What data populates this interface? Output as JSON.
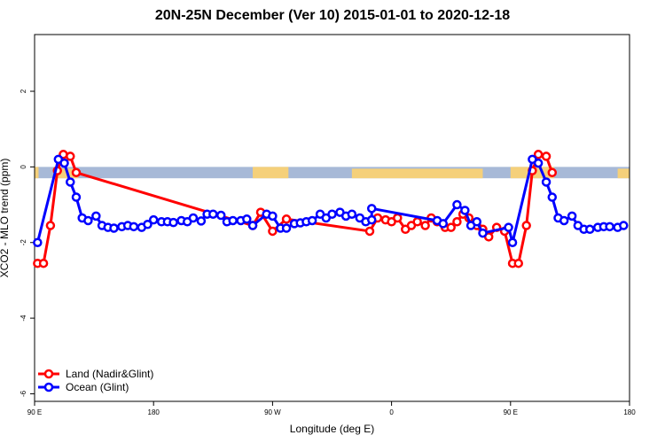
{
  "chart_data": {
    "type": "line",
    "title": "20N-25N December (Ver 10)   2015-01-01 to 2020-12-18",
    "xlabel": "Longitude (deg E)",
    "ylabel": "XCO2 - MLO trend (ppm)",
    "xlim": [
      0,
      300
    ],
    "ylim": [
      -6.2,
      3.5
    ],
    "x_ticks": [
      {
        "x": 0,
        "label": "90 E"
      },
      {
        "x": 60,
        "label": "180"
      },
      {
        "x": 120,
        "label": "90 W"
      },
      {
        "x": 180,
        "label": "0"
      },
      {
        "x": 240,
        "label": "90 E"
      },
      {
        "x": 300,
        "label": "180"
      }
    ],
    "y_ticks": [
      {
        "y": 2,
        "label": "2"
      },
      {
        "y": 0,
        "label": "0"
      },
      {
        "y": -2,
        "label": "-2"
      },
      {
        "y": -4,
        "label": "-4"
      },
      {
        "y": -6,
        "label": "-6"
      }
    ],
    "legend_position": "bottom-left",
    "grid": false,
    "background_band": {
      "y_min": -0.3,
      "y_max": 0.0,
      "ocean_color": "#a7b9d7",
      "land_color": "#f5d07a"
    },
    "series": [
      {
        "name": "Land (Nadir&Glint)",
        "color": "#ff0000",
        "points": [
          [
            1.5,
            -2.55
          ],
          [
            4.5,
            -2.55
          ],
          [
            8,
            -1.55
          ],
          [
            11.5,
            -0.1
          ],
          [
            14.5,
            0.33
          ],
          [
            18,
            0.28
          ],
          [
            21,
            -0.15
          ],
          [
            110,
            -1.55
          ],
          [
            114,
            -1.2
          ],
          [
            120,
            -1.7
          ],
          [
            127,
            -1.38
          ],
          [
            169,
            -1.7
          ],
          [
            173,
            -1.35
          ],
          [
            177,
            -1.4
          ],
          [
            180,
            -1.45
          ],
          [
            183,
            -1.35
          ],
          [
            187,
            -1.65
          ],
          [
            190,
            -1.55
          ],
          [
            193,
            -1.45
          ],
          [
            197,
            -1.55
          ],
          [
            200,
            -1.35
          ],
          [
            203,
            -1.45
          ],
          [
            207,
            -1.6
          ],
          [
            210,
            -1.6
          ],
          [
            213,
            -1.45
          ],
          [
            216,
            -1.25
          ],
          [
            219,
            -1.35
          ],
          [
            223,
            -1.55
          ],
          [
            226,
            -1.65
          ],
          [
            229,
            -1.85
          ],
          [
            233,
            -1.6
          ],
          [
            237,
            -1.7
          ],
          [
            241,
            -2.55
          ],
          [
            244,
            -2.55
          ],
          [
            248,
            -1.55
          ],
          [
            251,
            -0.1
          ],
          [
            254,
            0.33
          ],
          [
            258,
            0.28
          ],
          [
            261,
            -0.15
          ]
        ]
      },
      {
        "name": "Ocean (Glint)",
        "color": "#0000ff",
        "points": [
          [
            1.5,
            -2.0
          ],
          [
            12,
            0.2
          ],
          [
            15,
            0.1
          ],
          [
            18,
            -0.4
          ],
          [
            21,
            -0.8
          ],
          [
            24,
            -1.35
          ],
          [
            27,
            -1.42
          ],
          [
            31,
            -1.3
          ],
          [
            34,
            -1.55
          ],
          [
            37,
            -1.6
          ],
          [
            40,
            -1.62
          ],
          [
            44,
            -1.58
          ],
          [
            47,
            -1.55
          ],
          [
            50,
            -1.58
          ],
          [
            54,
            -1.6
          ],
          [
            57,
            -1.52
          ],
          [
            60,
            -1.4
          ],
          [
            64,
            -1.45
          ],
          [
            67,
            -1.45
          ],
          [
            70,
            -1.47
          ],
          [
            74,
            -1.42
          ],
          [
            77,
            -1.45
          ],
          [
            80,
            -1.35
          ],
          [
            84,
            -1.43
          ],
          [
            87,
            -1.25
          ],
          [
            90,
            -1.25
          ],
          [
            94,
            -1.28
          ],
          [
            97,
            -1.45
          ],
          [
            100,
            -1.42
          ],
          [
            104,
            -1.42
          ],
          [
            107,
            -1.38
          ],
          [
            110,
            -1.55
          ],
          [
            117,
            -1.25
          ],
          [
            120,
            -1.3
          ],
          [
            124,
            -1.62
          ],
          [
            127,
            -1.62
          ],
          [
            131,
            -1.5
          ],
          [
            134,
            -1.48
          ],
          [
            137,
            -1.45
          ],
          [
            140,
            -1.42
          ],
          [
            144,
            -1.25
          ],
          [
            147,
            -1.35
          ],
          [
            150,
            -1.25
          ],
          [
            154,
            -1.2
          ],
          [
            157,
            -1.3
          ],
          [
            160,
            -1.25
          ],
          [
            164,
            -1.35
          ],
          [
            167,
            -1.45
          ],
          [
            170,
            -1.4
          ],
          [
            170,
            -1.1
          ],
          [
            203,
            -1.42
          ],
          [
            206,
            -1.5
          ],
          [
            213,
            -1.0
          ],
          [
            217,
            -1.15
          ],
          [
            220,
            -1.55
          ],
          [
            223,
            -1.45
          ],
          [
            226,
            -1.75
          ],
          [
            239,
            -1.6
          ],
          [
            241,
            -2.0
          ],
          [
            251,
            0.2
          ],
          [
            254,
            0.1
          ],
          [
            258,
            -0.4
          ],
          [
            261,
            -0.8
          ],
          [
            264,
            -1.35
          ],
          [
            267,
            -1.42
          ],
          [
            271,
            -1.3
          ],
          [
            274,
            -1.55
          ],
          [
            277,
            -1.65
          ],
          [
            280,
            -1.65
          ],
          [
            284,
            -1.6
          ],
          [
            287,
            -1.58
          ],
          [
            290,
            -1.58
          ],
          [
            294,
            -1.6
          ],
          [
            297,
            -1.55
          ]
        ]
      }
    ]
  }
}
